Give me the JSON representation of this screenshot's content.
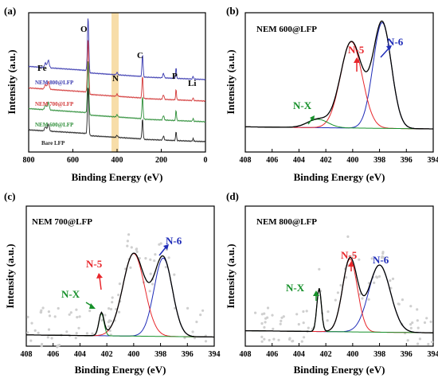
{
  "panels": {
    "a": {
      "letter": "(a)",
      "xlabel": "Binding Energy (eV)",
      "ylabel": "Intensity (a.u.)",
      "element_labels": [
        "O",
        "C",
        "N",
        "Fe",
        "P",
        "Li"
      ],
      "trace_labels": [
        "NEM 800@LFP",
        "NEM 700@LFP",
        "NEM 600@LFP",
        "Bare LFP"
      ]
    },
    "b": {
      "letter": "(b)",
      "sample": "NEM 600@LFP",
      "xlabel": "Binding Energy (eV)",
      "ylabel": "Intensity (a.u.)",
      "peaks": [
        "N-5",
        "N-6",
        "N-X"
      ]
    },
    "c": {
      "letter": "(c)",
      "sample": "NEM 700@LFP",
      "xlabel": "Binding Energy (eV)",
      "ylabel": "Intensity (a.u.)",
      "peaks": [
        "N-5",
        "N-6",
        "N-X"
      ]
    },
    "d": {
      "letter": "(d)",
      "sample": "NEM 800@LFP",
      "xlabel": "Binding Energy (eV)",
      "ylabel": "Intensity (a.u.)",
      "peaks": [
        "N-5",
        "N-6",
        "N-X"
      ]
    }
  },
  "colors": {
    "n5": "#e8262b",
    "n6": "#1e2bb8",
    "nx": "#16902a",
    "fit": "#000000",
    "t800": "#3a3ab0",
    "t700": "#d33a3a",
    "t600": "#2f8f3a",
    "bare": "#222222",
    "highlight": "#f6d79a"
  },
  "chart_data": [
    {
      "panel": "a",
      "type": "line",
      "xlabel": "Binding Energy (eV)",
      "ylabel": "Intensity (a.u.)",
      "xlim": [
        800,
        0
      ],
      "xticks": [
        800,
        600,
        400,
        200,
        0
      ],
      "highlight_band": [
        410,
        385
      ],
      "series": [
        {
          "name": "NEM 800@LFP"
        },
        {
          "name": "NEM 700@LFP"
        },
        {
          "name": "NEM 600@LFP"
        },
        {
          "name": "Bare LFP"
        }
      ],
      "annotations": [
        {
          "text": "O",
          "x": 531
        },
        {
          "text": "C",
          "x": 284
        },
        {
          "text": "N",
          "x": 400
        },
        {
          "text": "Fe",
          "x": 711
        },
        {
          "text": "P",
          "x": 133
        },
        {
          "text": "Li",
          "x": 55
        }
      ]
    },
    {
      "panel": "b",
      "type": "line",
      "xlabel": "Binding Energy (eV)",
      "ylabel": "Intensity (a.u.)",
      "xlim": [
        408,
        394
      ],
      "xticks": [
        408,
        406,
        404,
        402,
        400,
        398,
        396,
        394
      ],
      "baseline": 0.12,
      "series": [
        {
          "name": "N-6",
          "center": 397.8,
          "fwhm": 1.6,
          "height": 0.76
        },
        {
          "name": "N-5",
          "center": 400.1,
          "fwhm": 1.9,
          "height": 0.62
        },
        {
          "name": "N-X",
          "center": 402.6,
          "fwhm": 1.8,
          "height": 0.06
        }
      ]
    },
    {
      "panel": "c",
      "type": "line",
      "xlabel": "Binding Energy (eV)",
      "ylabel": "Intensity (a.u.)",
      "xlim": [
        408,
        394
      ],
      "xticks": [
        408,
        406,
        404,
        402,
        400,
        398,
        396,
        394
      ],
      "baseline": 0.02,
      "series": [
        {
          "name": "N-6",
          "center": 397.8,
          "fwhm": 1.6,
          "height": 0.56
        },
        {
          "name": "N-5",
          "center": 400.0,
          "fwhm": 1.9,
          "height": 0.59
        },
        {
          "name": "N-X",
          "center": 402.4,
          "fwhm": 0.45,
          "height": 0.16
        }
      ]
    },
    {
      "panel": "d",
      "type": "line",
      "xlabel": "Binding Energy (eV)",
      "ylabel": "Intensity (a.u.)",
      "xlim": [
        408,
        394
      ],
      "xticks": [
        408,
        406,
        404,
        402,
        400,
        398,
        396,
        394
      ],
      "baseline": 0.05,
      "series": [
        {
          "name": "N-6",
          "center": 398.0,
          "fwhm": 1.9,
          "height": 0.48
        },
        {
          "name": "N-5",
          "center": 400.2,
          "fwhm": 1.3,
          "height": 0.52
        },
        {
          "name": "N-X",
          "center": 402.5,
          "fwhm": 0.4,
          "height": 0.31
        }
      ]
    }
  ]
}
